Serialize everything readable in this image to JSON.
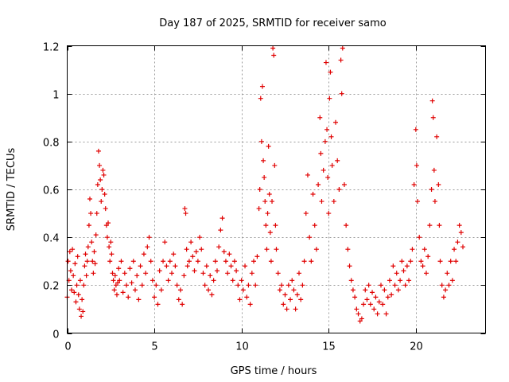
{
  "chart_data": {
    "type": "scatter",
    "title": "Day 187 of 2025, SRMTID for receiver samo",
    "xlabel": "GPS time / hours",
    "ylabel": "SRMTID / TECUs",
    "xlim": [
      0,
      24
    ],
    "ylim": [
      0,
      1.2
    ],
    "xticks": [
      0,
      5,
      10,
      15,
      20
    ],
    "yticks": [
      0,
      0.2,
      0.4,
      0.6,
      0.8,
      1,
      1.2
    ],
    "xtick_labels": [
      "0",
      "5",
      "10",
      "15",
      "20"
    ],
    "ytick_labels": [
      "0",
      "0.2",
      "0.4",
      "0.6",
      "0.8",
      "1",
      "1.2"
    ],
    "grid": true,
    "legend": "none",
    "marker": "+",
    "color": "#e00000",
    "series": [
      {
        "name": "SRMTID",
        "points": [
          [
            0.0,
            0.15
          ],
          [
            0.05,
            0.3
          ],
          [
            0.1,
            0.22
          ],
          [
            0.15,
            0.34
          ],
          [
            0.2,
            0.26
          ],
          [
            0.25,
            0.18
          ],
          [
            0.3,
            0.35
          ],
          [
            0.35,
            0.24
          ],
          [
            0.4,
            0.17
          ],
          [
            0.45,
            0.29
          ],
          [
            0.5,
            0.13
          ],
          [
            0.55,
            0.2
          ],
          [
            0.6,
            0.32
          ],
          [
            0.65,
            0.16
          ],
          [
            0.7,
            0.1
          ],
          [
            0.75,
            0.22
          ],
          [
            0.8,
            0.07
          ],
          [
            0.85,
            0.14
          ],
          [
            0.9,
            0.09
          ],
          [
            0.95,
            0.2
          ],
          [
            1.0,
            0.28
          ],
          [
            1.05,
            0.33
          ],
          [
            1.1,
            0.24
          ],
          [
            1.15,
            0.3
          ],
          [
            1.2,
            0.36
          ],
          [
            1.25,
            0.45
          ],
          [
            1.3,
            0.56
          ],
          [
            1.35,
            0.5
          ],
          [
            1.4,
            0.38
          ],
          [
            1.45,
            0.3
          ],
          [
            1.5,
            0.25
          ],
          [
            1.55,
            0.34
          ],
          [
            1.6,
            0.29
          ],
          [
            1.65,
            0.41
          ],
          [
            1.7,
            0.5
          ],
          [
            1.75,
            0.62
          ],
          [
            1.8,
            0.76
          ],
          [
            1.85,
            0.7
          ],
          [
            1.9,
            0.64
          ],
          [
            1.95,
            0.55
          ],
          [
            2.0,
            0.6
          ],
          [
            2.05,
            0.68
          ],
          [
            2.1,
            0.66
          ],
          [
            2.15,
            0.58
          ],
          [
            2.2,
            0.52
          ],
          [
            2.25,
            0.45
          ],
          [
            2.3,
            0.4
          ],
          [
            2.35,
            0.46
          ],
          [
            2.4,
            0.36
          ],
          [
            2.45,
            0.3
          ],
          [
            2.5,
            0.38
          ],
          [
            2.55,
            0.33
          ],
          [
            2.6,
            0.25
          ],
          [
            2.65,
            0.22
          ],
          [
            2.7,
            0.18
          ],
          [
            2.75,
            0.24
          ],
          [
            2.8,
            0.2
          ],
          [
            2.85,
            0.16
          ],
          [
            2.9,
            0.21
          ],
          [
            2.95,
            0.27
          ],
          [
            3.0,
            0.22
          ],
          [
            3.1,
            0.3
          ],
          [
            3.2,
            0.17
          ],
          [
            3.3,
            0.25
          ],
          [
            3.4,
            0.2
          ],
          [
            3.5,
            0.15
          ],
          [
            3.6,
            0.27
          ],
          [
            3.7,
            0.21
          ],
          [
            3.8,
            0.3
          ],
          [
            3.9,
            0.18
          ],
          [
            4.0,
            0.24
          ],
          [
            4.1,
            0.14
          ],
          [
            4.2,
            0.28
          ],
          [
            4.3,
            0.2
          ],
          [
            4.4,
            0.33
          ],
          [
            4.5,
            0.25
          ],
          [
            4.6,
            0.36
          ],
          [
            4.7,
            0.4
          ],
          [
            4.8,
            0.3
          ],
          [
            4.9,
            0.22
          ],
          [
            5.0,
            0.15
          ],
          [
            5.1,
            0.2
          ],
          [
            5.2,
            0.12
          ],
          [
            5.3,
            0.26
          ],
          [
            5.4,
            0.18
          ],
          [
            5.5,
            0.3
          ],
          [
            5.6,
            0.38
          ],
          [
            5.7,
            0.28
          ],
          [
            5.8,
            0.22
          ],
          [
            5.9,
            0.3
          ],
          [
            6.0,
            0.25
          ],
          [
            6.1,
            0.33
          ],
          [
            6.2,
            0.28
          ],
          [
            6.3,
            0.2
          ],
          [
            6.4,
            0.14
          ],
          [
            6.5,
            0.18
          ],
          [
            6.6,
            0.12
          ],
          [
            6.7,
            0.24
          ],
          [
            6.75,
            0.52
          ],
          [
            6.8,
            0.5
          ],
          [
            6.85,
            0.35
          ],
          [
            6.9,
            0.28
          ],
          [
            7.0,
            0.3
          ],
          [
            7.1,
            0.38
          ],
          [
            7.2,
            0.32
          ],
          [
            7.3,
            0.26
          ],
          [
            7.4,
            0.34
          ],
          [
            7.5,
            0.3
          ],
          [
            7.6,
            0.4
          ],
          [
            7.7,
            0.35
          ],
          [
            7.8,
            0.25
          ],
          [
            7.9,
            0.2
          ],
          [
            8.0,
            0.28
          ],
          [
            8.1,
            0.18
          ],
          [
            8.2,
            0.24
          ],
          [
            8.3,
            0.16
          ],
          [
            8.4,
            0.22
          ],
          [
            8.5,
            0.3
          ],
          [
            8.6,
            0.26
          ],
          [
            8.7,
            0.36
          ],
          [
            8.8,
            0.43
          ],
          [
            8.9,
            0.48
          ],
          [
            9.0,
            0.34
          ],
          [
            9.1,
            0.3
          ],
          [
            9.2,
            0.25
          ],
          [
            9.3,
            0.33
          ],
          [
            9.4,
            0.28
          ],
          [
            9.5,
            0.22
          ],
          [
            9.6,
            0.3
          ],
          [
            9.7,
            0.26
          ],
          [
            9.8,
            0.2
          ],
          [
            9.9,
            0.14
          ],
          [
            10.0,
            0.22
          ],
          [
            10.1,
            0.18
          ],
          [
            10.2,
            0.28
          ],
          [
            10.3,
            0.15
          ],
          [
            10.4,
            0.2
          ],
          [
            10.5,
            0.12
          ],
          [
            10.6,
            0.25
          ],
          [
            10.7,
            0.3
          ],
          [
            10.8,
            0.2
          ],
          [
            10.9,
            0.32
          ],
          [
            11.0,
            0.52
          ],
          [
            11.05,
            0.6
          ],
          [
            11.1,
            0.98
          ],
          [
            11.15,
            0.8
          ],
          [
            11.2,
            1.03
          ],
          [
            11.25,
            0.72
          ],
          [
            11.3,
            0.65
          ],
          [
            11.35,
            0.55
          ],
          [
            11.4,
            0.45
          ],
          [
            11.45,
            0.35
          ],
          [
            11.5,
            0.5
          ],
          [
            11.55,
            0.78
          ],
          [
            11.6,
            0.58
          ],
          [
            11.65,
            0.42
          ],
          [
            11.7,
            0.3
          ],
          [
            11.75,
            0.55
          ],
          [
            11.8,
            1.19
          ],
          [
            11.85,
            1.16
          ],
          [
            11.9,
            0.7
          ],
          [
            11.95,
            0.45
          ],
          [
            12.0,
            0.35
          ],
          [
            12.1,
            0.25
          ],
          [
            12.2,
            0.18
          ],
          [
            12.3,
            0.2
          ],
          [
            12.4,
            0.12
          ],
          [
            12.5,
            0.16
          ],
          [
            12.6,
            0.1
          ],
          [
            12.7,
            0.2
          ],
          [
            12.8,
            0.14
          ],
          [
            12.9,
            0.22
          ],
          [
            13.0,
            0.18
          ],
          [
            13.1,
            0.1
          ],
          [
            13.2,
            0.16
          ],
          [
            13.3,
            0.25
          ],
          [
            13.4,
            0.14
          ],
          [
            13.5,
            0.2
          ],
          [
            13.6,
            0.3
          ],
          [
            13.7,
            0.5
          ],
          [
            13.8,
            0.66
          ],
          [
            13.9,
            0.4
          ],
          [
            14.0,
            0.3
          ],
          [
            14.1,
            0.58
          ],
          [
            14.2,
            0.45
          ],
          [
            14.3,
            0.35
          ],
          [
            14.4,
            0.62
          ],
          [
            14.5,
            0.9
          ],
          [
            14.55,
            0.75
          ],
          [
            14.6,
            0.55
          ],
          [
            14.7,
            0.68
          ],
          [
            14.8,
            0.8
          ],
          [
            14.85,
            1.13
          ],
          [
            14.9,
            0.85
          ],
          [
            14.95,
            0.65
          ],
          [
            15.0,
            0.5
          ],
          [
            15.05,
            0.98
          ],
          [
            15.1,
            1.09
          ],
          [
            15.15,
            0.82
          ],
          [
            15.2,
            0.7
          ],
          [
            15.3,
            0.55
          ],
          [
            15.4,
            0.88
          ],
          [
            15.5,
            0.72
          ],
          [
            15.6,
            0.6
          ],
          [
            15.7,
            1.14
          ],
          [
            15.75,
            1.0
          ],
          [
            15.8,
            1.19
          ],
          [
            15.9,
            0.62
          ],
          [
            16.0,
            0.45
          ],
          [
            16.1,
            0.35
          ],
          [
            16.2,
            0.28
          ],
          [
            16.3,
            0.22
          ],
          [
            16.4,
            0.18
          ],
          [
            16.5,
            0.15
          ],
          [
            16.6,
            0.1
          ],
          [
            16.7,
            0.08
          ],
          [
            16.8,
            0.05
          ],
          [
            16.9,
            0.06
          ],
          [
            17.0,
            0.12
          ],
          [
            17.1,
            0.18
          ],
          [
            17.2,
            0.14
          ],
          [
            17.3,
            0.2
          ],
          [
            17.4,
            0.12
          ],
          [
            17.5,
            0.17
          ],
          [
            17.6,
            0.1
          ],
          [
            17.7,
            0.15
          ],
          [
            17.8,
            0.08
          ],
          [
            17.9,
            0.13
          ],
          [
            18.0,
            0.2
          ],
          [
            18.1,
            0.12
          ],
          [
            18.2,
            0.18
          ],
          [
            18.3,
            0.08
          ],
          [
            18.4,
            0.15
          ],
          [
            18.5,
            0.22
          ],
          [
            18.6,
            0.16
          ],
          [
            18.7,
            0.28
          ],
          [
            18.8,
            0.2
          ],
          [
            18.9,
            0.25
          ],
          [
            19.0,
            0.18
          ],
          [
            19.1,
            0.22
          ],
          [
            19.2,
            0.3
          ],
          [
            19.3,
            0.26
          ],
          [
            19.4,
            0.2
          ],
          [
            19.5,
            0.28
          ],
          [
            19.6,
            0.22
          ],
          [
            19.7,
            0.3
          ],
          [
            19.8,
            0.35
          ],
          [
            19.9,
            0.62
          ],
          [
            20.0,
            0.85
          ],
          [
            20.05,
            0.7
          ],
          [
            20.1,
            0.55
          ],
          [
            20.2,
            0.4
          ],
          [
            20.3,
            0.3
          ],
          [
            20.4,
            0.28
          ],
          [
            20.5,
            0.35
          ],
          [
            20.6,
            0.25
          ],
          [
            20.7,
            0.32
          ],
          [
            20.8,
            0.45
          ],
          [
            20.9,
            0.6
          ],
          [
            20.95,
            0.97
          ],
          [
            21.0,
            0.9
          ],
          [
            21.05,
            0.68
          ],
          [
            21.1,
            0.55
          ],
          [
            21.2,
            0.82
          ],
          [
            21.3,
            0.62
          ],
          [
            21.35,
            0.45
          ],
          [
            21.4,
            0.3
          ],
          [
            21.5,
            0.2
          ],
          [
            21.6,
            0.15
          ],
          [
            21.7,
            0.18
          ],
          [
            21.8,
            0.25
          ],
          [
            21.9,
            0.2
          ],
          [
            22.0,
            0.3
          ],
          [
            22.1,
            0.22
          ],
          [
            22.2,
            0.35
          ],
          [
            22.3,
            0.3
          ],
          [
            22.4,
            0.38
          ],
          [
            22.5,
            0.45
          ],
          [
            22.6,
            0.42
          ],
          [
            22.7,
            0.36
          ]
        ]
      }
    ]
  }
}
